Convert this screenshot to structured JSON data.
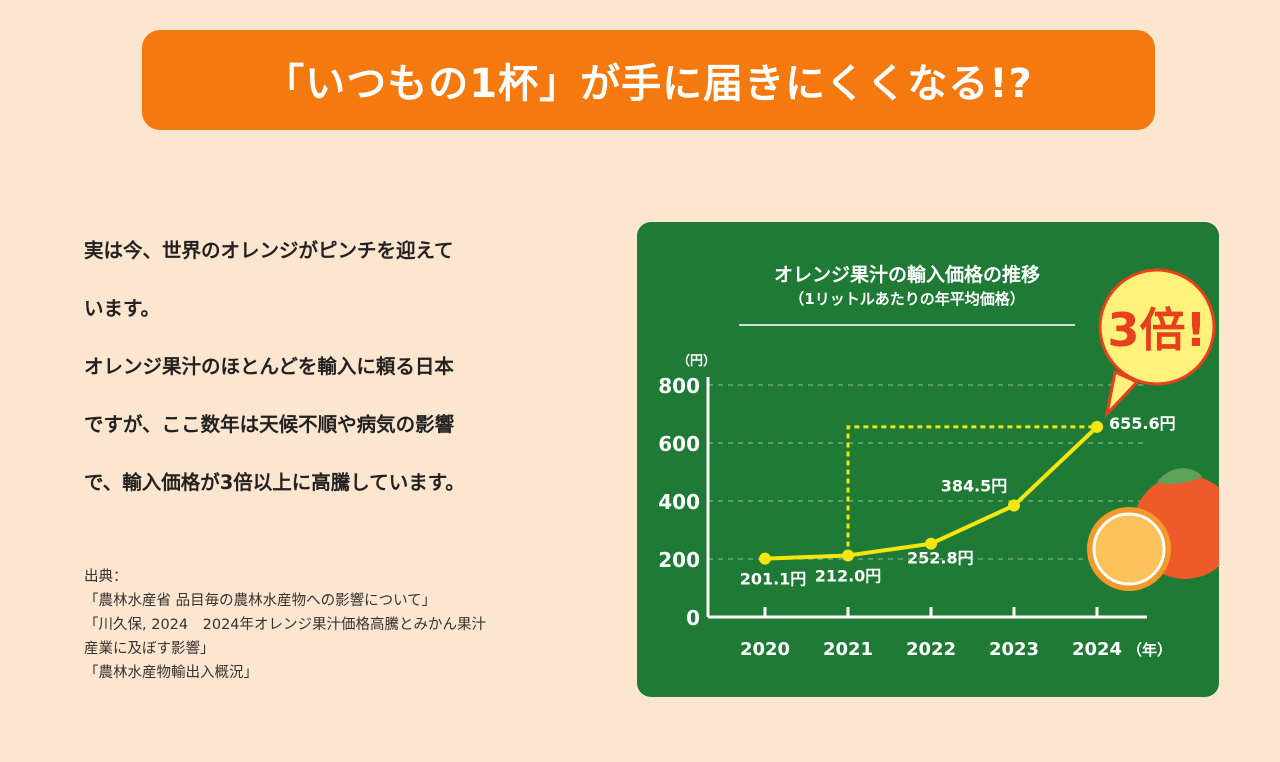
{
  "banner": {
    "title": "「いつもの1杯」が手に届きにくくなる!?"
  },
  "body": {
    "lines": [
      "実は今、世界のオレンジがピンチを迎えて",
      "います。",
      "オレンジ果汁のほとんどを輸入に頼る日本",
      "ですが、ここ数年は天候不順や病気の影響",
      "で、輸入価格が3倍以上に高騰しています。"
    ]
  },
  "sources": {
    "label": "出典：",
    "items": [
      "「農林水産省 品目毎の農林水産物への影響について」",
      "「川久保, 2024　2024年オレンジ果汁価格高騰とみかん果汁",
      "産業に及ぼす影響」",
      "「農林水産物輸出入概況」"
    ]
  },
  "chart_data": {
    "type": "line",
    "title": "オレンジ果汁の輸入価格の推移",
    "subtitle": "（1リットルあたりの年平均価格）",
    "ylabel": "（円）",
    "xlabel": "（年）",
    "categories": [
      "2020",
      "2021",
      "2022",
      "2023",
      "2024"
    ],
    "values": [
      201.1,
      212.0,
      252.8,
      384.5,
      655.6
    ],
    "data_labels": [
      "201.1円",
      "212.0円",
      "252.8円",
      "384.5円",
      "655.6円"
    ],
    "yticks": [
      0,
      200,
      400,
      600,
      800
    ],
    "ylim": [
      0,
      800
    ],
    "grid": true,
    "callout": "3倍!",
    "colors": {
      "background": "#1e7a35",
      "line": "#f5e60f",
      "callout_fill": "#fff27a",
      "callout_text": "#e8401c",
      "banner": "#f47a10",
      "page": "#fde6cf"
    }
  }
}
